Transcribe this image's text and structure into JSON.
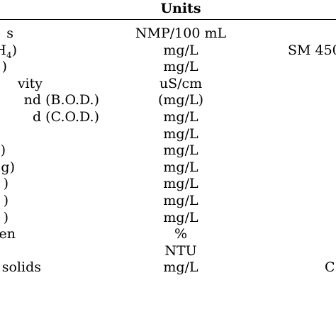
{
  "header": {
    "units_label": "Units"
  },
  "rows": [
    {
      "param": "s",
      "unit": "NMP/100 mL",
      "method": ""
    },
    {
      "param": "H",
      "param_sub": "4",
      "param_tail": ")",
      "unit": "mg/L",
      "method": "SM 450"
    },
    {
      "param": ")",
      "unit": "mg/L",
      "method": ""
    },
    {
      "param": "vity",
      "unit": "uS/cm",
      "method": ""
    },
    {
      "param": "nd (B.O.D.)",
      "unit": "(mg/L)",
      "method": ""
    },
    {
      "param": "d (C.O.D.)",
      "unit": "mg/L",
      "method": ""
    },
    {
      "param": "",
      "unit": "mg/L",
      "method": ""
    },
    {
      "param": ")",
      "unit": "mg/L",
      "method": ""
    },
    {
      "param": "g)",
      "unit": "mg/L",
      "method": ""
    },
    {
      "param": ")",
      "unit": "mg/L",
      "method": ""
    },
    {
      "param": ")",
      "unit": "mg/L",
      "method": ""
    },
    {
      "param": ")",
      "unit": "mg/L",
      "method": ""
    },
    {
      "param": "en",
      "unit": "%",
      "method": ""
    },
    {
      "param": "",
      "unit": "NTU",
      "method": ""
    },
    {
      "param": "solids",
      "unit": "mg/L",
      "method": "C"
    }
  ]
}
